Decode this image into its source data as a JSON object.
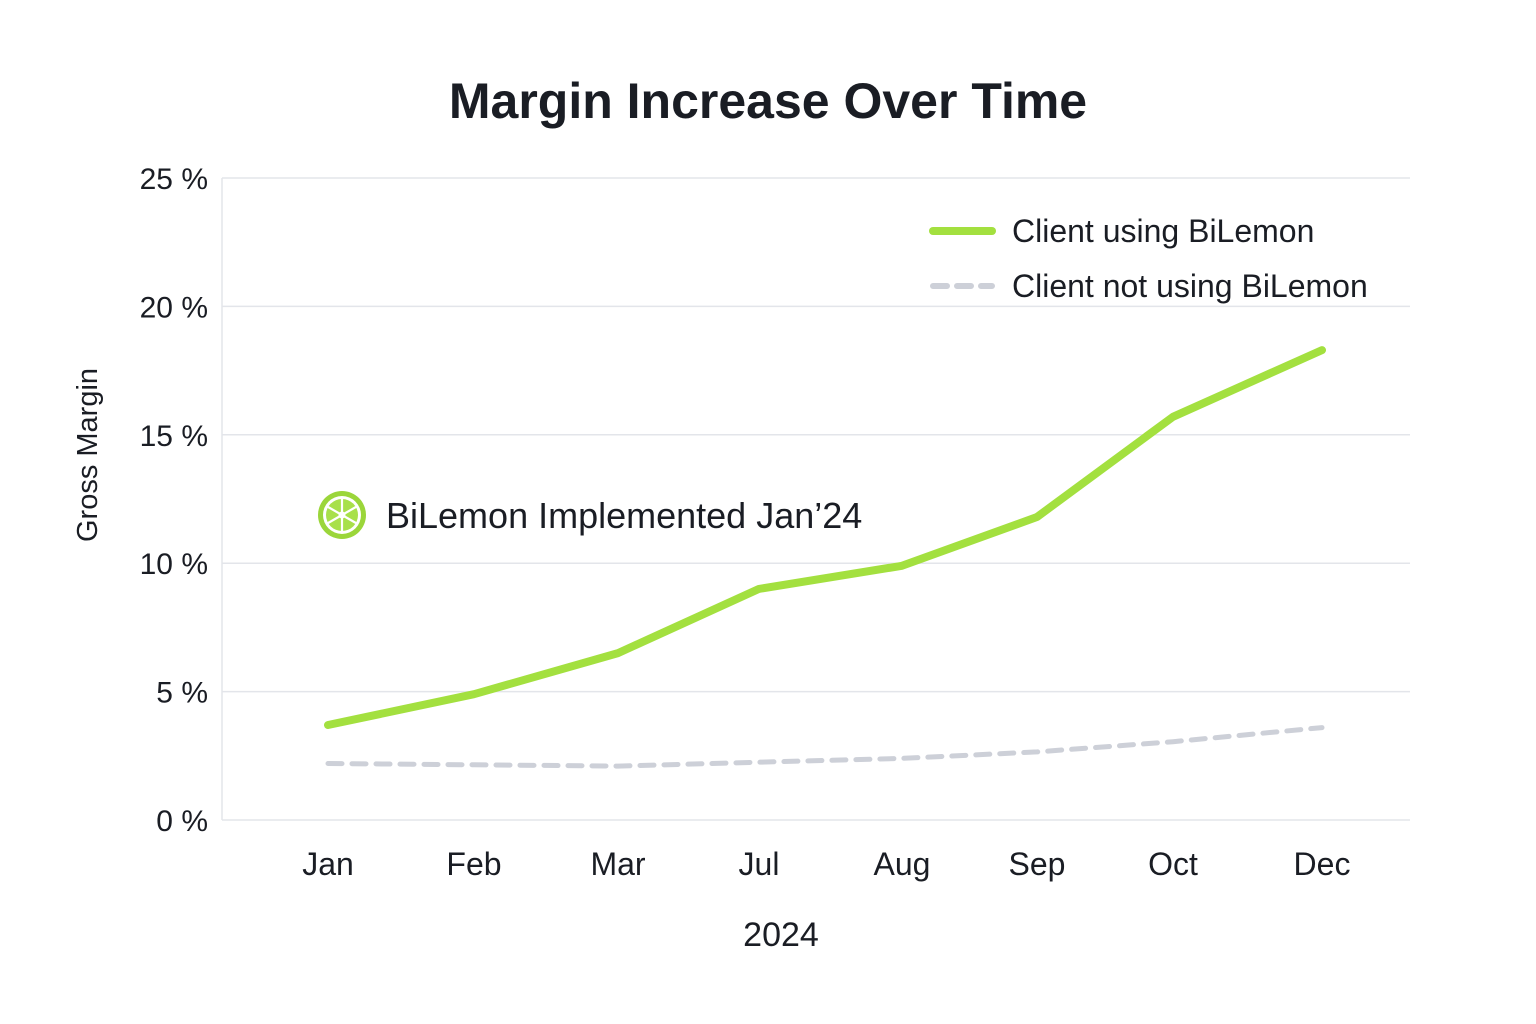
{
  "chart_data": {
    "type": "line",
    "title": "Margin Increase Over Time",
    "xlabel": "2024",
    "ylabel": "Gross Margin",
    "categories": [
      "Jan",
      "Feb",
      "Mar",
      "Jul",
      "Aug",
      "Sep",
      "Oct",
      "Dec"
    ],
    "ylim": [
      0,
      25
    ],
    "yticks": [
      0,
      5,
      10,
      15,
      20,
      25
    ],
    "ytick_labels": [
      "0 %",
      "5 %",
      "10 %",
      "15 %",
      "20 %",
      "25 %"
    ],
    "grid": true,
    "legend_position": "top-right",
    "series": [
      {
        "name": "Client using BiLemon",
        "values": [
          3.7,
          4.9,
          6.5,
          9.0,
          9.9,
          11.8,
          15.7,
          18.3
        ],
        "color": "#a3e03f",
        "style": "solid"
      },
      {
        "name": "Client not using BiLemon",
        "values": [
          2.2,
          2.15,
          2.1,
          2.25,
          2.4,
          2.65,
          3.05,
          3.6
        ],
        "color": "#cdd0d8",
        "style": "dashed"
      }
    ],
    "annotations": [
      {
        "text": "BiLemon Implemented Jan’24",
        "icon": "lemon-slice-icon"
      }
    ]
  }
}
